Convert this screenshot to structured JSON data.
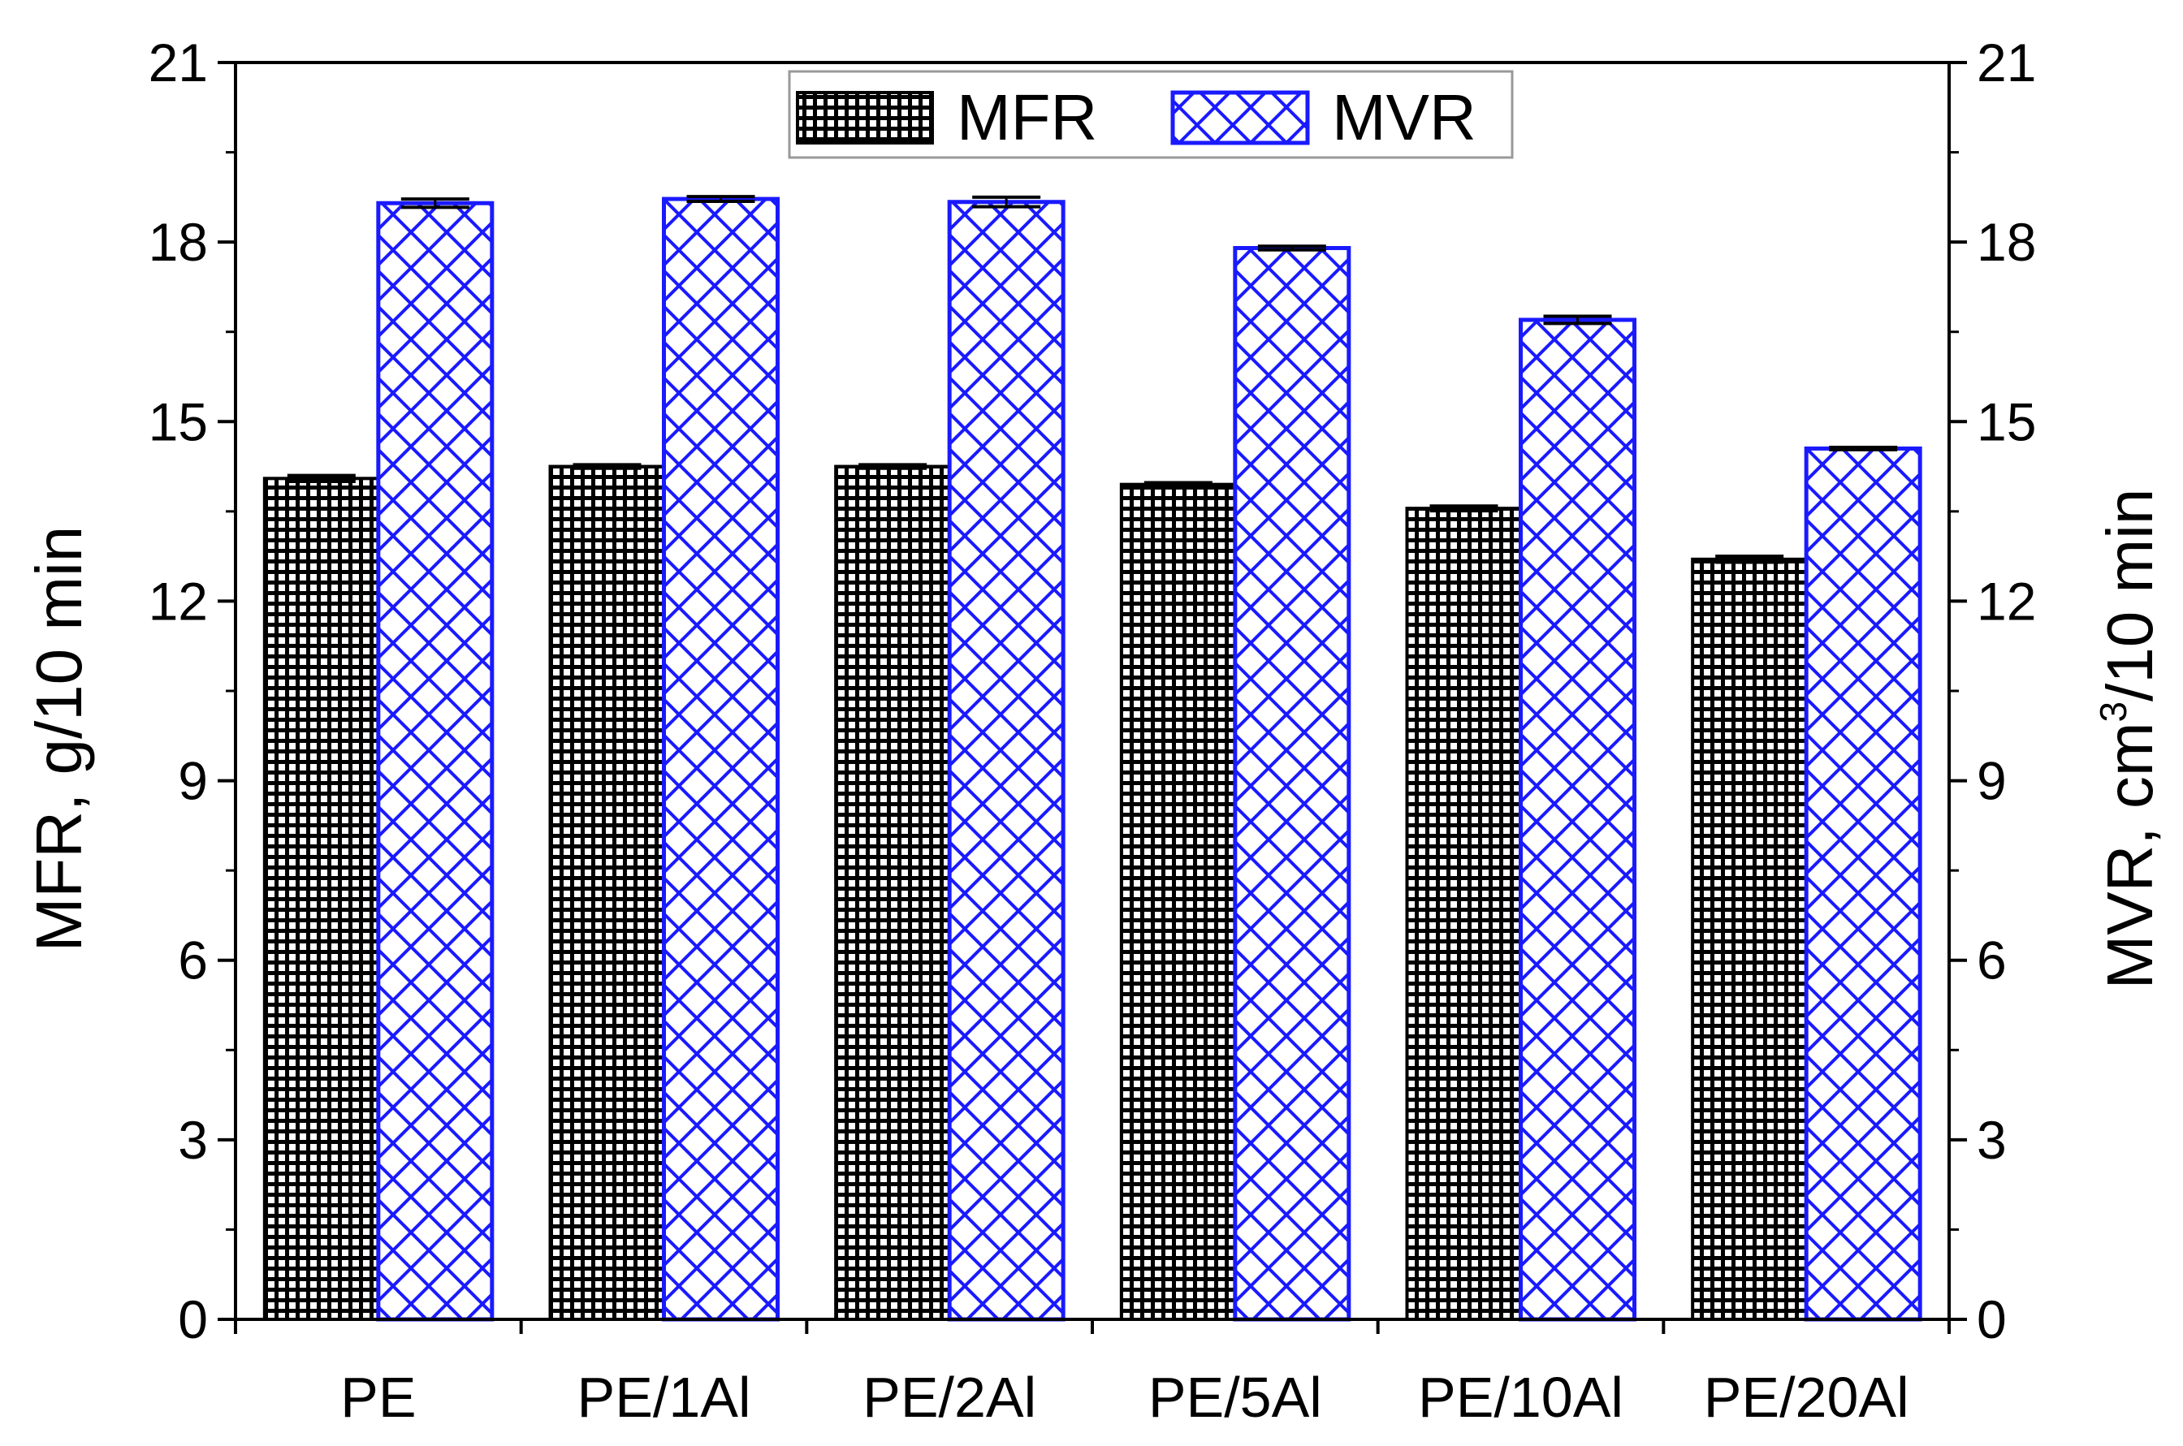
{
  "chart_data": {
    "type": "bar",
    "categories": [
      "PE",
      "PE/1Al",
      "PE/2Al",
      "PE/5Al",
      "PE/10Al",
      "PE/20Al"
    ],
    "series": [
      {
        "name": "MFR",
        "axis": "left",
        "values": [
          14.05,
          14.25,
          14.25,
          13.95,
          13.55,
          12.7
        ],
        "errors": [
          0.05,
          0.03,
          0.03,
          0.03,
          0.04,
          0.05
        ],
        "color": "#000000",
        "pattern": "fine-grid"
      },
      {
        "name": "MVR",
        "axis": "right",
        "values": [
          18.65,
          18.72,
          18.67,
          17.9,
          16.7,
          14.55
        ],
        "errors": [
          0.07,
          0.04,
          0.08,
          0.03,
          0.06,
          0.02
        ],
        "color": "#1a1aff",
        "pattern": "cross-hatch"
      }
    ],
    "ylabel": "MFR, g/10 min",
    "y2label_main": "MVR, cm",
    "y2label_sup": "3",
    "y2label_tail": "/10 min",
    "ylim": [
      0,
      21
    ],
    "y2lim": [
      0,
      21
    ],
    "yticks": [
      "0",
      "3",
      "6",
      "9",
      "12",
      "15",
      "18",
      "21"
    ],
    "y2ticks": [
      "0",
      "3",
      "6",
      "9",
      "12",
      "15",
      "18",
      "21"
    ],
    "legend_position": "top-center",
    "grid": false
  }
}
